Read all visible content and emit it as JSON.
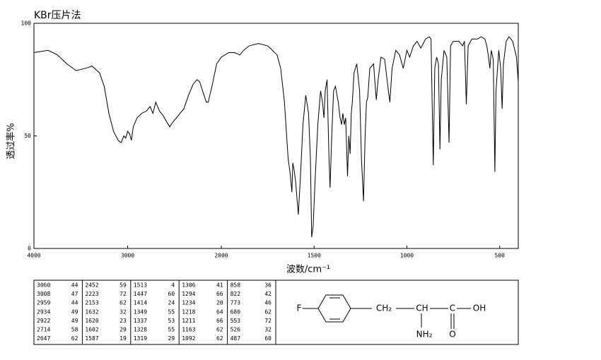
{
  "chart_data": {
    "type": "line",
    "title": "KBr压片法",
    "x_label": "波数/cm⁻¹",
    "y_label": "透过率%",
    "color": "#000000",
    "xlim": [
      4000,
      400
    ],
    "x_scale_break": 2000,
    "ylim": [
      0,
      100
    ],
    "xticks": [
      4000,
      3000,
      2000,
      1500,
      1000,
      500
    ],
    "yticks": [
      0,
      50,
      100
    ],
    "x": [
      4000,
      3850,
      3750,
      3650,
      3550,
      3450,
      3380,
      3300,
      3250,
      3200,
      3150,
      3100,
      3070,
      3040,
      3020,
      3000,
      2980,
      2960,
      2940,
      2900,
      2850,
      2800,
      2760,
      2730,
      2700,
      2660,
      2620,
      2580,
      2550,
      2520,
      2480,
      2440,
      2400,
      2350,
      2300,
      2260,
      2230,
      2200,
      2160,
      2140,
      2100,
      2050,
      2000,
      1960,
      1930,
      1900,
      1880,
      1850,
      1800,
      1750,
      1700,
      1680,
      1660,
      1640,
      1630,
      1620,
      1615,
      1608,
      1600,
      1590,
      1585,
      1575,
      1560,
      1545,
      1530,
      1520,
      1513,
      1505,
      1495,
      1480,
      1465,
      1455,
      1447,
      1440,
      1430,
      1420,
      1414,
      1405,
      1395,
      1385,
      1370,
      1360,
      1352,
      1345,
      1337,
      1330,
      1320,
      1313,
      1306,
      1300,
      1294,
      1285,
      1270,
      1255,
      1245,
      1234,
      1225,
      1218,
      1211,
      1200,
      1180,
      1165,
      1155,
      1140,
      1120,
      1100,
      1092,
      1080,
      1060,
      1040,
      1020,
      1005,
      1000,
      985,
      965,
      945,
      925,
      900,
      880,
      870,
      858,
      850,
      840,
      830,
      822,
      815,
      800,
      785,
      773,
      765,
      750,
      720,
      700,
      690,
      680,
      670,
      650,
      620,
      600,
      580,
      570,
      560,
      553,
      545,
      535,
      526,
      520,
      505,
      495,
      487,
      480,
      465,
      450,
      430,
      410,
      400
    ],
    "values": [
      87,
      88,
      86,
      82,
      79,
      80,
      81,
      78,
      72,
      60,
      52,
      48,
      47,
      50,
      49,
      52,
      51,
      48,
      54,
      58,
      60,
      61,
      63,
      60,
      65,
      61,
      59,
      56,
      54,
      56,
      58,
      60,
      62,
      68,
      73,
      75,
      74,
      70,
      65,
      65,
      72,
      82,
      85,
      87,
      87,
      86,
      88,
      90,
      91,
      90,
      86,
      80,
      65,
      40,
      34,
      25,
      38,
      35,
      30,
      20,
      15,
      30,
      55,
      68,
      60,
      40,
      5,
      10,
      30,
      55,
      70,
      65,
      58,
      70,
      75,
      40,
      27,
      50,
      70,
      72,
      65,
      58,
      55,
      60,
      55,
      58,
      32,
      50,
      42,
      60,
      65,
      78,
      82,
      70,
      40,
      21,
      50,
      65,
      67,
      80,
      82,
      66,
      75,
      85,
      84,
      70,
      65,
      80,
      88,
      86,
      80,
      86,
      88,
      85,
      90,
      92,
      89,
      93,
      94,
      93,
      37,
      80,
      85,
      82,
      44,
      75,
      88,
      85,
      47,
      90,
      92,
      92,
      90,
      92,
      64,
      90,
      93,
      93,
      94,
      93,
      90,
      85,
      80,
      88,
      84,
      34,
      70,
      88,
      80,
      62,
      82,
      92,
      94,
      92,
      85,
      74
    ]
  },
  "peak_table": {
    "columns": [
      [
        [
          3060,
          44
        ],
        [
          3008,
          47
        ],
        [
          2959,
          44
        ],
        [
          2934,
          49
        ],
        [
          2922,
          49
        ],
        [
          2714,
          58
        ],
        [
          2647,
          62
        ]
      ],
      [
        [
          2452,
          59
        ],
        [
          2223,
          72
        ],
        [
          2153,
          62
        ],
        [
          1632,
          32
        ],
        [
          1620,
          23
        ],
        [
          1602,
          29
        ],
        [
          1587,
          19
        ]
      ],
      [
        [
          1513,
          4
        ],
        [
          1447,
          60
        ],
        [
          1414,
          24
        ],
        [
          1349,
          55
        ],
        [
          1337,
          53
        ],
        [
          1328,
          55
        ],
        [
          1319,
          29
        ]
      ],
      [
        [
          1306,
          41
        ],
        [
          1294,
          66
        ],
        [
          1234,
          20
        ],
        [
          1218,
          64
        ],
        [
          1211,
          66
        ],
        [
          1163,
          62
        ],
        [
          1092,
          62
        ]
      ],
      [
        [
          858,
          36
        ],
        [
          822,
          42
        ],
        [
          773,
          46
        ],
        [
          680,
          62
        ],
        [
          553,
          72
        ],
        [
          526,
          32
        ],
        [
          487,
          60
        ]
      ]
    ]
  },
  "structure": {
    "labels": [
      "F",
      "CH₂",
      "CH",
      "C",
      "OH",
      "NH₂",
      "O"
    ]
  }
}
